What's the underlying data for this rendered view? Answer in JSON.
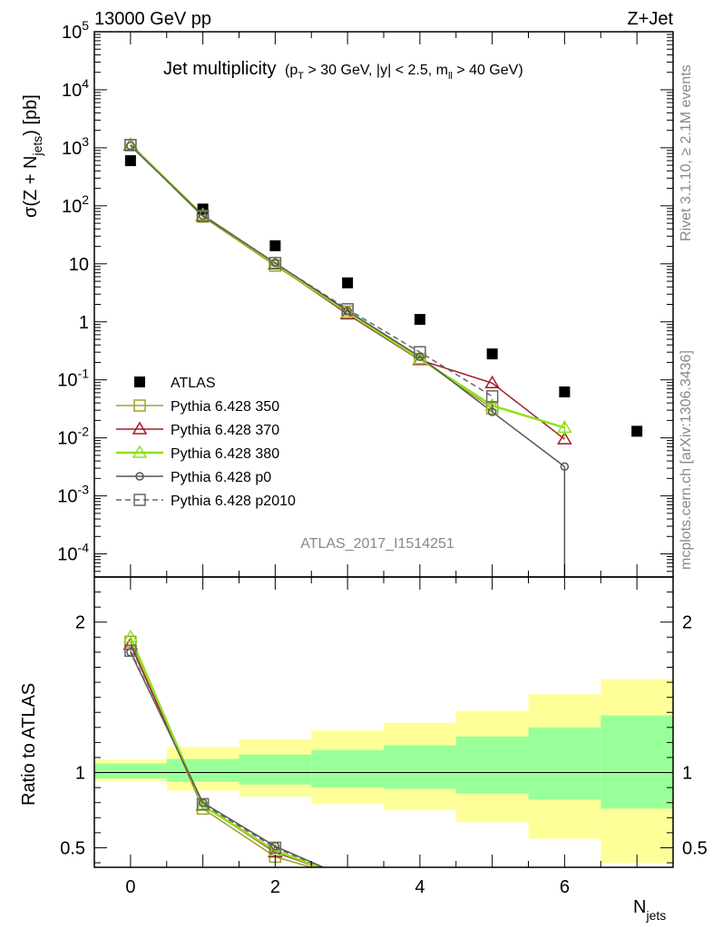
{
  "header": {
    "left": "13000 GeV pp",
    "right": "Z+Jet"
  },
  "side_labels": {
    "rivet": "Rivet 3.1.10, ≥ 2.1M events",
    "mcplots": "mcplots.cern.ch [arXiv:1306.3436]"
  },
  "analysis_id": "ATLAS_2017_I1514251",
  "title": {
    "main": "Jet multiplicity",
    "cuts": "(p_T > 30 GeV, |y| < 2.5, m_ll > 40 GeV)"
  },
  "axes": {
    "ylabel_top": "σ(Z + N_jets) [pb]",
    "ylabel_bottom": "Ratio to ATLAS",
    "xlabel": "N_jets"
  },
  "chart_data": [
    {
      "type": "scatter",
      "panel": "main",
      "yscale": "log",
      "xlim": [
        -0.5,
        7.5
      ],
      "ylim": [
        4e-05,
        100000
      ],
      "x_ticks": [
        0,
        2,
        4,
        6
      ],
      "y_ticks": [
        {
          "value": 0.0001,
          "label": "10^-4"
        },
        {
          "value": 0.001,
          "label": "10^-3"
        },
        {
          "value": 0.01,
          "label": "10^-2"
        },
        {
          "value": 0.1,
          "label": "10^-1"
        },
        {
          "value": 1,
          "label": "1"
        },
        {
          "value": 10,
          "label": "10"
        },
        {
          "value": 100,
          "label": "10^2"
        },
        {
          "value": 1000,
          "label": "10^3"
        },
        {
          "value": 10000,
          "label": "10^4"
        },
        {
          "value": 100000,
          "label": "10^5"
        }
      ],
      "legend_position": "left-middle",
      "series": [
        {
          "name": "ATLAS",
          "style": "data",
          "color": "#000000",
          "x": [
            0,
            1,
            2,
            3,
            4,
            5,
            6,
            7
          ],
          "y": [
            600,
            88,
            20.5,
            4.7,
            1.1,
            0.28,
            0.062,
            0.013
          ]
        },
        {
          "name": "Pythia 6.428 350",
          "style": "line",
          "marker": "square",
          "dash": false,
          "color": "#a0a030",
          "x": [
            0,
            1,
            2,
            3,
            4,
            5
          ],
          "y": [
            1120,
            65,
            9.3,
            1.5,
            0.23,
            0.032
          ]
        },
        {
          "name": "Pythia 6.428 370",
          "style": "line",
          "marker": "triangle",
          "dash": false,
          "color": "#a31a2a",
          "x": [
            0,
            1,
            2,
            3,
            4,
            5,
            6
          ],
          "y": [
            1110,
            67,
            9.8,
            1.35,
            0.22,
            0.088,
            0.0095
          ]
        },
        {
          "name": "Pythia 6.428 380",
          "style": "line",
          "marker": "triangle",
          "dash": false,
          "color": "#90e020",
          "x": [
            0,
            1,
            2,
            3,
            4,
            5,
            6
          ],
          "y": [
            1140,
            69,
            10.0,
            1.45,
            0.23,
            0.036,
            0.015
          ],
          "yerr": [
            0,
            0,
            0,
            0,
            0,
            0,
            0.005
          ]
        },
        {
          "name": "Pythia 6.428 p0",
          "style": "line",
          "marker": "circle",
          "dash": false,
          "color": "#555555",
          "x": [
            0,
            1,
            2,
            3,
            4,
            5,
            6
          ],
          "y": [
            1080,
            68,
            10.4,
            1.55,
            0.25,
            0.028,
            0.0032
          ],
          "yerr_low": [
            0,
            0,
            0,
            0,
            0,
            0,
            0.00319
          ],
          "yerr_high": [
            0,
            0,
            0,
            0,
            0,
            0.01,
            0
          ]
        },
        {
          "name": "Pythia 6.428 p2010",
          "style": "line",
          "marker": "square",
          "dash": true,
          "color": "#666666",
          "x": [
            0,
            1,
            2,
            3,
            4,
            5
          ],
          "y": [
            1110,
            67,
            10.3,
            1.65,
            0.3,
            0.052
          ]
        }
      ]
    },
    {
      "type": "line",
      "panel": "ratio",
      "xlim": [
        -0.5,
        7.5
      ],
      "ylim": [
        0.37,
        2.3
      ],
      "y_ticks": [
        {
          "value": 0.5,
          "label": "0.5"
        },
        {
          "value": 1,
          "label": "1"
        },
        {
          "value": 2,
          "label": "2"
        }
      ],
      "bands": {
        "yellow": "#ffff99",
        "green": "#99ff99",
        "bins": [
          {
            "lo": -0.5,
            "hi": 0.5,
            "yellow": [
              0.94,
              1.085
            ],
            "green": [
              0.96,
              1.06
            ]
          },
          {
            "lo": 0.5,
            "hi": 1.5,
            "yellow": [
              0.88,
              1.17
            ],
            "green": [
              0.94,
              1.09
            ]
          },
          {
            "lo": 1.5,
            "hi": 2.5,
            "yellow": [
              0.84,
              1.22
            ],
            "green": [
              0.92,
              1.12
            ]
          },
          {
            "lo": 2.5,
            "hi": 3.5,
            "yellow": [
              0.79,
              1.28
            ],
            "green": [
              0.9,
              1.15
            ]
          },
          {
            "lo": 3.5,
            "hi": 4.5,
            "yellow": [
              0.75,
              1.33
            ],
            "green": [
              0.89,
              1.18
            ]
          },
          {
            "lo": 4.5,
            "hi": 5.5,
            "yellow": [
              0.67,
              1.41
            ],
            "green": [
              0.86,
              1.24
            ]
          },
          {
            "lo": 5.5,
            "hi": 6.5,
            "yellow": [
              0.56,
              1.52
            ],
            "green": [
              0.82,
              1.3
            ]
          },
          {
            "lo": 6.5,
            "hi": 7.5,
            "yellow": [
              0.4,
              1.62
            ],
            "green": [
              0.76,
              1.38
            ]
          }
        ]
      },
      "series": [
        {
          "name": "Pythia 6.428 350",
          "marker": "square",
          "dash": false,
          "color": "#a0a030",
          "x": [
            0,
            1,
            2,
            3
          ],
          "y": [
            1.87,
            0.76,
            0.44,
            0.3
          ]
        },
        {
          "name": "Pythia 6.428 370",
          "marker": "triangle",
          "dash": false,
          "color": "#a31a2a",
          "x": [
            0,
            1,
            2,
            3
          ],
          "y": [
            1.85,
            0.78,
            0.47,
            0.3
          ]
        },
        {
          "name": "Pythia 6.428 380",
          "marker": "triangle",
          "dash": false,
          "color": "#90e020",
          "x": [
            0,
            1,
            2,
            3
          ],
          "y": [
            1.9,
            0.78,
            0.48,
            0.3
          ]
        },
        {
          "name": "Pythia 6.428 p0",
          "marker": "circle",
          "dash": false,
          "color": "#555555",
          "x": [
            0,
            1,
            2,
            3
          ],
          "y": [
            1.8,
            0.8,
            0.51,
            0.3
          ]
        },
        {
          "name": "Pythia 6.428 p2010",
          "marker": "square",
          "dash": true,
          "color": "#666666",
          "x": [
            0,
            1,
            2,
            3
          ],
          "y": [
            1.81,
            0.79,
            0.5,
            0.3
          ]
        }
      ]
    }
  ]
}
